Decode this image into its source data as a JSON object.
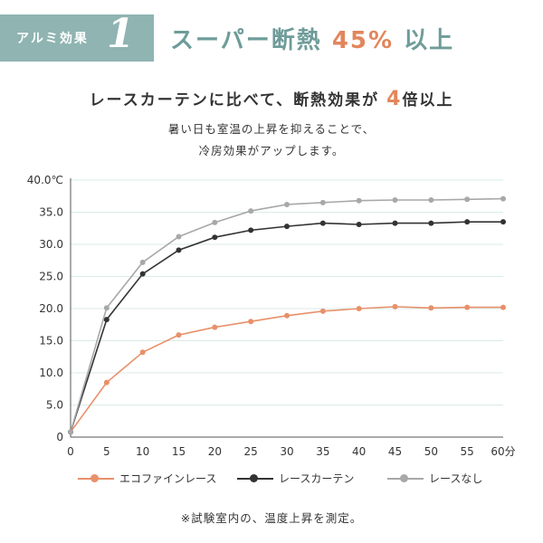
{
  "header": {
    "badge_label": "アルミ効果",
    "badge_number": "1",
    "headline_main": "スーパー断熱",
    "headline_value": "45%",
    "headline_suffix": "以上"
  },
  "subheading": {
    "prefix": "レースカーテンに比べて、断熱効果が",
    "value": "4",
    "suffix": "倍以上"
  },
  "description": [
    "暑い日も室温の上昇を抑えることで、",
    "冷房効果がアップします。"
  ],
  "note": "※試験室内の、温度上昇を測定。",
  "chart_data": {
    "type": "line",
    "x": [
      0,
      5,
      10,
      15,
      20,
      25,
      30,
      35,
      40,
      45,
      50,
      55,
      60
    ],
    "x_tick_labels": [
      "0",
      "5",
      "10",
      "15",
      "20",
      "25",
      "30",
      "35",
      "40",
      "45",
      "50",
      "55",
      "60分"
    ],
    "y_tick_labels": [
      "0",
      "5.0",
      "10.0",
      "15.0",
      "20.0",
      "25.0",
      "30.0",
      "35.0",
      "40.0℃"
    ],
    "y_ticks": [
      0,
      5,
      10,
      15,
      20,
      25,
      30,
      35,
      40
    ],
    "xlim": [
      0,
      60
    ],
    "ylim": [
      0,
      40
    ],
    "grid": "horizontal",
    "legend_position": "bottom",
    "series": [
      {
        "name": "エコファインレース",
        "color": "#e8906a",
        "values": [
          0.8,
          8.5,
          13.2,
          15.9,
          17.1,
          18.0,
          18.9,
          19.6,
          20.0,
          20.3,
          20.1,
          20.2,
          20.2
        ]
      },
      {
        "name": "レースカーテン",
        "color": "#333333",
        "values": [
          0.8,
          18.3,
          25.4,
          29.1,
          31.1,
          32.2,
          32.8,
          33.3,
          33.1,
          33.3,
          33.3,
          33.5,
          33.5
        ]
      },
      {
        "name": "レースなし",
        "color": "#a8a8a8",
        "values": [
          0.8,
          20.1,
          27.2,
          31.2,
          33.4,
          35.2,
          36.2,
          36.5,
          36.8,
          36.9,
          36.9,
          37.0,
          37.1
        ]
      }
    ]
  },
  "colors": {
    "badge_bg": "#8fb4b2",
    "headline": "#6e9c99",
    "accent": "#e2865c",
    "grid": "#d9ebe8"
  }
}
